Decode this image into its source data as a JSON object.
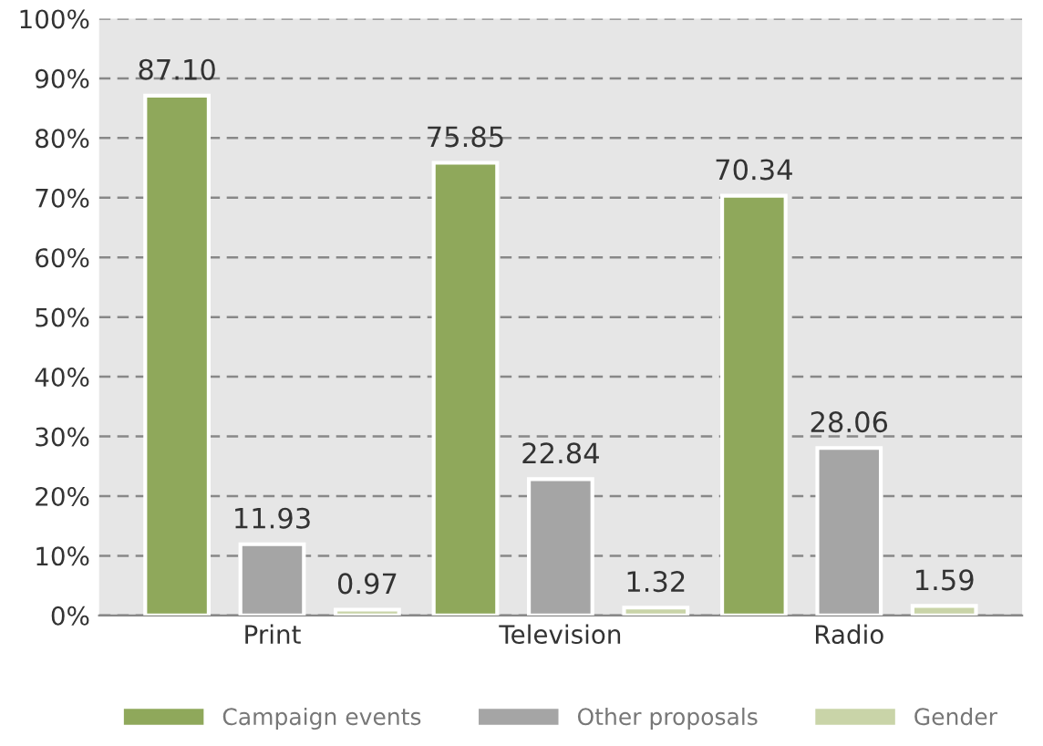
{
  "chart_data": {
    "type": "bar",
    "categories": [
      "Print",
      "Television",
      "Radio"
    ],
    "series": [
      {
        "name": "Campaign events",
        "color": "#8fa85b",
        "values": [
          87.1,
          75.85,
          70.34
        ],
        "value_labels": [
          "87.10",
          "75.85",
          "70.34"
        ]
      },
      {
        "name": "Other proposals",
        "color": "#a5a5a5",
        "values": [
          11.93,
          22.84,
          28.06
        ],
        "value_labels": [
          "11.93",
          "22.84",
          "28.06"
        ]
      },
      {
        "name": "Gender",
        "color": "#c9d4a8",
        "values": [
          0.97,
          1.32,
          1.59
        ],
        "value_labels": [
          "0.97",
          "1.32",
          "1.59"
        ]
      }
    ],
    "ylim": [
      0,
      100
    ],
    "yticks": [
      {
        "value": 0,
        "label": "0%"
      },
      {
        "value": 10,
        "label": "10%"
      },
      {
        "value": 20,
        "label": "20%"
      },
      {
        "value": 30,
        "label": "30%"
      },
      {
        "value": 40,
        "label": "40%"
      },
      {
        "value": 50,
        "label": "50%"
      },
      {
        "value": 60,
        "label": "60%"
      },
      {
        "value": 70,
        "label": "70%"
      },
      {
        "value": 80,
        "label": "80%"
      },
      {
        "value": 90,
        "label": "90%"
      },
      {
        "value": 100,
        "label": "100%"
      }
    ],
    "grid": "y",
    "legend": "bottom"
  }
}
